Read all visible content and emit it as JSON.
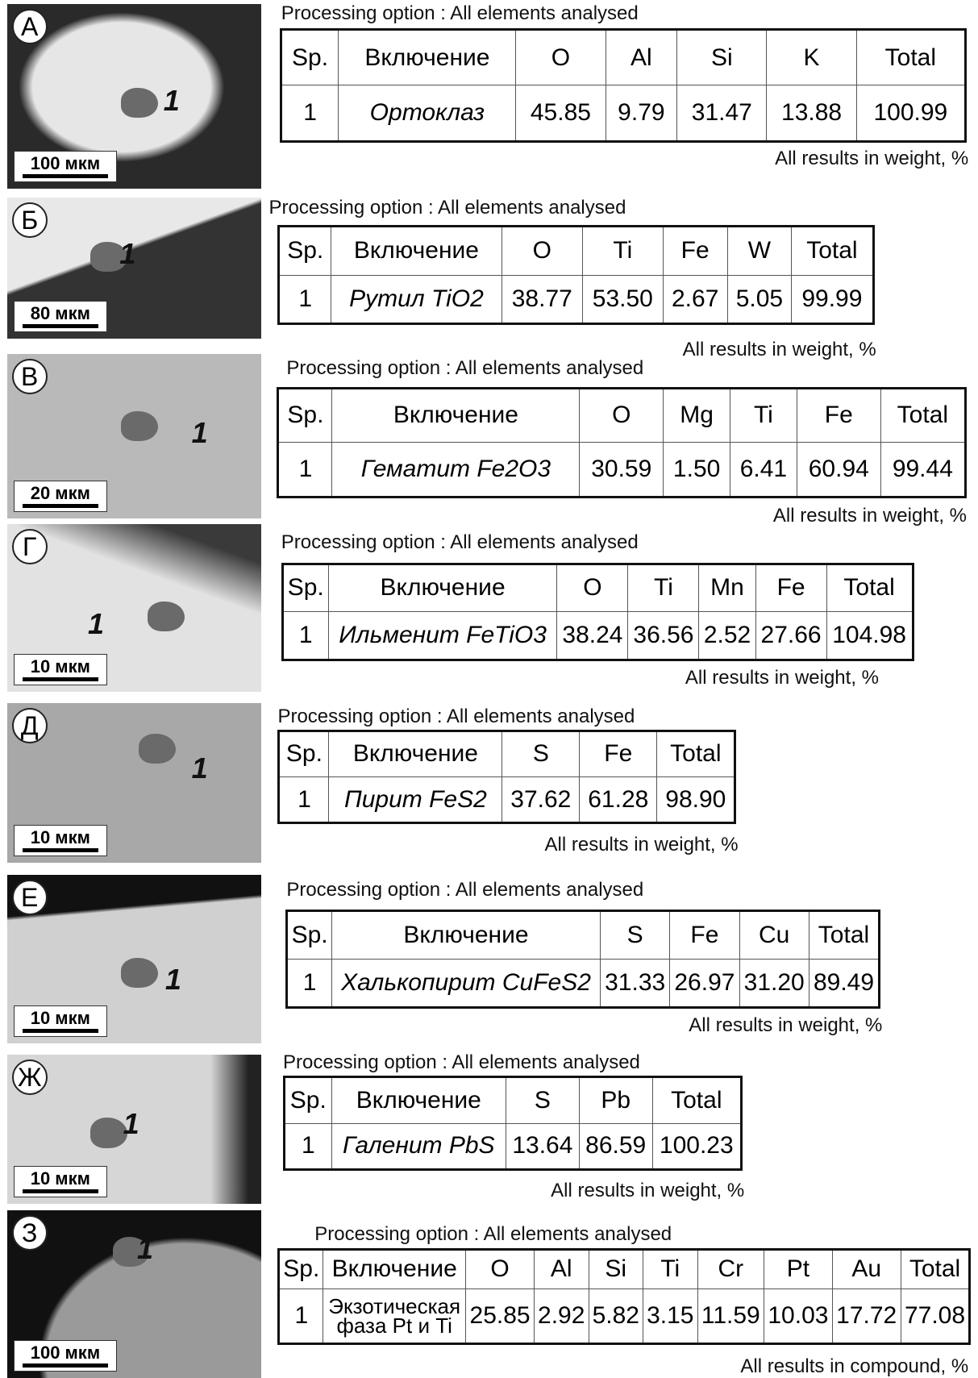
{
  "panels": [
    {
      "letter": "А",
      "scale": "100 мкм",
      "marker": "1",
      "processing": "Processing option : All elements analysed",
      "table": {
        "header": [
          "Sp.",
          "Включение",
          "O",
          "Al",
          "Si",
          "K",
          "Total"
        ],
        "rows": [
          [
            "1",
            "Ортоклаз",
            "45.85",
            "9.79",
            "31.47",
            "13.88",
            "100.99"
          ]
        ]
      },
      "note": "All results in weight, %"
    },
    {
      "letter": "Б",
      "scale": "80 мкм",
      "marker": "1",
      "processing": "Processing option : All elements analysed",
      "table": {
        "header": [
          "Sp.",
          "Включение",
          "O",
          "Ti",
          "Fe",
          "W",
          "Total"
        ],
        "rows": [
          [
            "1",
            "Рутил TiO2",
            "38.77",
            "53.50",
            "2.67",
            "5.05",
            "99.99"
          ]
        ]
      },
      "note": "All results in weight, %"
    },
    {
      "letter": "В",
      "scale": "20 мкм",
      "marker": "1",
      "processing": "Processing option : All elements analysed",
      "table": {
        "header": [
          "Sp.",
          "Включение",
          "O",
          "Mg",
          "Ti",
          "Fe",
          "Total"
        ],
        "rows": [
          [
            "1",
            "Гематит Fe2O3",
            "30.59",
            "1.50",
            "6.41",
            "60.94",
            "99.44"
          ]
        ]
      },
      "note": "All results in weight, %"
    },
    {
      "letter": "Г",
      "scale": "10 мкм",
      "marker": "1",
      "processing": "Processing option : All elements analysed",
      "table": {
        "header": [
          "Sp.",
          "Включение",
          "O",
          "Ti",
          "Mn",
          "Fe",
          "Total"
        ],
        "rows": [
          [
            "1",
            "Ильменит FeTiO3",
            "38.24",
            "36.56",
            "2.52",
            "27.66",
            "104.98"
          ]
        ]
      },
      "note": "All results in weight, %"
    },
    {
      "letter": "Д",
      "scale": "10 мкм",
      "marker": "1",
      "processing": "Processing option : All elements analysed",
      "table": {
        "header": [
          "Sp.",
          "Включение",
          "S",
          "Fe",
          "Total"
        ],
        "rows": [
          [
            "1",
            "Пирит FeS2",
            "37.62",
            "61.28",
            "98.90"
          ]
        ]
      },
      "note": "All results in weight, %"
    },
    {
      "letter": "Е",
      "scale": "10 мкм",
      "marker": "1",
      "processing": "Processing option : All elements analysed",
      "table": {
        "header": [
          "Sp.",
          "Включение",
          "S",
          "Fe",
          "Cu",
          "Total"
        ],
        "rows": [
          [
            "1",
            "Халькопирит CuFeS2",
            "31.33",
            "26.97",
            "31.20",
            "89.49"
          ]
        ]
      },
      "note": "All results in weight, %"
    },
    {
      "letter": "Ж",
      "scale": "10 мкм",
      "marker": "1",
      "processing": "Processing option : All elements analysed",
      "table": {
        "header": [
          "Sp.",
          "Включение",
          "S",
          "Pb",
          "Total"
        ],
        "rows": [
          [
            "1",
            "Галенит PbS",
            "13.64",
            "86.59",
            "100.23"
          ]
        ]
      },
      "note": "All results in weight, %"
    },
    {
      "letter": "З",
      "scale": "100 мкм",
      "marker": "1",
      "processing": "Processing option : All elements analysed",
      "table": {
        "header": [
          "Sp.",
          "Включение",
          "O",
          "Al",
          "Si",
          "Ti",
          "Cr",
          "Pt",
          "Au",
          "Total"
        ],
        "rows": [
          [
            "1",
            "Экзотическая фаза Pt и Ti",
            "25.85",
            "2.92",
            "5.82",
            "3.15",
            "11.59",
            "10.03",
            "17.72",
            "77.08"
          ]
        ]
      },
      "note": "All results in compound, %"
    }
  ]
}
